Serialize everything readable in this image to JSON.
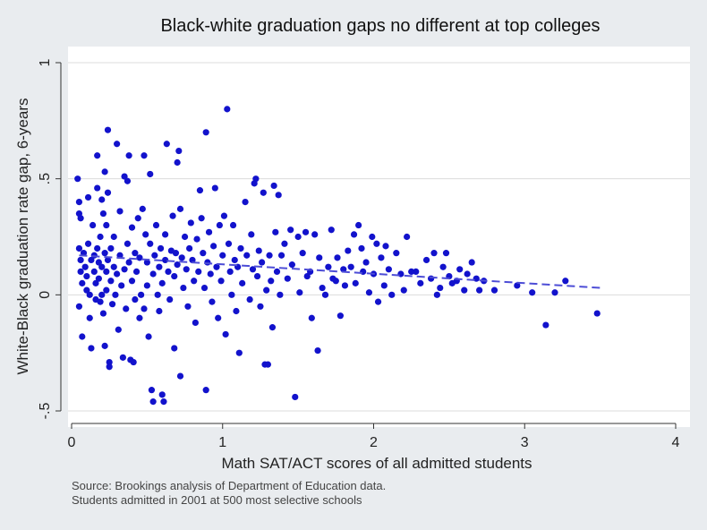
{
  "chart_data": {
    "type": "scatter",
    "title": "Black-white graduation gaps no different at top colleges",
    "xlabel": "Math SAT/ACT scores of all admitted students",
    "ylabel": "White-Black graduation rate gap, 6-years",
    "xlim": [
      0,
      4
    ],
    "ylim": [
      -0.5,
      1
    ],
    "xticks": [
      0,
      1,
      2,
      3,
      4
    ],
    "xtick_labels": [
      "0",
      "1",
      "2",
      "3",
      "4"
    ],
    "yticks": [
      -0.5,
      0,
      0.5,
      1
    ],
    "ytick_labels": [
      "-.5",
      "0",
      ".5",
      "1"
    ],
    "grid": true,
    "colors": {
      "points": "#1212cc",
      "fit": "#4d4dd6",
      "grid": "#dcdcdc",
      "background": "#e9ecef",
      "plot": "#ffffff"
    },
    "source_note": "Source: Brookings analysis of Department of Education data.",
    "sample_note": "Students admitted in 2001 at 500 most selective schools",
    "fit_line": {
      "style": "dashed",
      "x": [
        0.05,
        3.5
      ],
      "y": [
        0.17,
        0.03
      ]
    },
    "points": [
      [
        0.04,
        0.5
      ],
      [
        0.05,
        0.4
      ],
      [
        0.05,
        0.35
      ],
      [
        0.06,
        0.33
      ],
      [
        0.05,
        0.2
      ],
      [
        0.06,
        0.15
      ],
      [
        0.06,
        0.1
      ],
      [
        0.07,
        0.05
      ],
      [
        0.05,
        -0.05
      ],
      [
        0.07,
        -0.18
      ],
      [
        0.08,
        0.18
      ],
      [
        0.09,
        0.12
      ],
      [
        0.1,
        0.08
      ],
      [
        0.1,
        0.02
      ],
      [
        0.11,
        0.22
      ],
      [
        0.11,
        0.42
      ],
      [
        0.12,
        0.0
      ],
      [
        0.12,
        -0.1
      ],
      [
        0.13,
        0.15
      ],
      [
        0.13,
        -0.23
      ],
      [
        0.14,
        0.3
      ],
      [
        0.15,
        0.17
      ],
      [
        0.15,
        0.1
      ],
      [
        0.16,
        0.05
      ],
      [
        0.16,
        -0.02
      ],
      [
        0.17,
        0.2
      ],
      [
        0.17,
        0.6
      ],
      [
        0.17,
        0.46
      ],
      [
        0.18,
        0.14
      ],
      [
        0.18,
        0.07
      ],
      [
        0.19,
        0.25
      ],
      [
        0.19,
        -0.03
      ],
      [
        0.2,
        0.41
      ],
      [
        0.2,
        0.12
      ],
      [
        0.2,
        0.0
      ],
      [
        0.21,
        0.35
      ],
      [
        0.21,
        -0.08
      ],
      [
        0.22,
        0.18
      ],
      [
        0.22,
        0.53
      ],
      [
        0.22,
        -0.22
      ],
      [
        0.23,
        0.1
      ],
      [
        0.23,
        0.02
      ],
      [
        0.23,
        0.3
      ],
      [
        0.24,
        0.71
      ],
      [
        0.24,
        0.44
      ],
      [
        0.24,
        0.15
      ],
      [
        0.25,
        -0.29
      ],
      [
        0.25,
        -0.31
      ],
      [
        0.26,
        0.06
      ],
      [
        0.26,
        0.2
      ],
      [
        0.27,
        -0.04
      ],
      [
        0.28,
        0.12
      ],
      [
        0.28,
        0.25
      ],
      [
        0.29,
        0.0
      ],
      [
        0.3,
        0.65
      ],
      [
        0.3,
        0.09
      ],
      [
        0.31,
        -0.15
      ],
      [
        0.32,
        0.17
      ],
      [
        0.32,
        0.36
      ],
      [
        0.33,
        0.04
      ],
      [
        0.34,
        -0.27
      ],
      [
        0.35,
        0.51
      ],
      [
        0.35,
        0.11
      ],
      [
        0.36,
        -0.06
      ],
      [
        0.37,
        0.22
      ],
      [
        0.37,
        0.49
      ],
      [
        0.38,
        0.6
      ],
      [
        0.38,
        0.14
      ],
      [
        0.39,
        -0.28
      ],
      [
        0.4,
        0.29
      ],
      [
        0.4,
        0.06
      ],
      [
        0.41,
        -0.29
      ],
      [
        0.42,
        0.18
      ],
      [
        0.42,
        -0.02
      ],
      [
        0.43,
        0.1
      ],
      [
        0.44,
        0.33
      ],
      [
        0.45,
        -0.1
      ],
      [
        0.45,
        0.16
      ],
      [
        0.46,
        0.0
      ],
      [
        0.47,
        0.37
      ],
      [
        0.48,
        -0.06
      ],
      [
        0.48,
        0.6
      ],
      [
        0.49,
        0.26
      ],
      [
        0.5,
        0.14
      ],
      [
        0.5,
        0.04
      ],
      [
        0.51,
        -0.18
      ],
      [
        0.52,
        0.22
      ],
      [
        0.52,
        0.52
      ],
      [
        0.53,
        -0.41
      ],
      [
        0.54,
        0.09
      ],
      [
        0.54,
        -0.46
      ],
      [
        0.55,
        0.17
      ],
      [
        0.56,
        0.3
      ],
      [
        0.57,
        0.0
      ],
      [
        0.58,
        0.12
      ],
      [
        0.58,
        -0.07
      ],
      [
        0.59,
        0.2
      ],
      [
        0.6,
        0.05
      ],
      [
        0.6,
        -0.43
      ],
      [
        0.61,
        -0.46
      ],
      [
        0.62,
        0.15
      ],
      [
        0.62,
        0.26
      ],
      [
        0.63,
        0.65
      ],
      [
        0.64,
        0.1
      ],
      [
        0.65,
        -0.02
      ],
      [
        0.66,
        0.19
      ],
      [
        0.67,
        0.34
      ],
      [
        0.68,
        0.08
      ],
      [
        0.68,
        -0.23
      ],
      [
        0.69,
        0.18
      ],
      [
        0.7,
        0.57
      ],
      [
        0.7,
        0.13
      ],
      [
        0.71,
        0.62
      ],
      [
        0.72,
        -0.35
      ],
      [
        0.72,
        0.37
      ],
      [
        0.73,
        0.16
      ],
      [
        0.74,
        0.03
      ],
      [
        0.75,
        0.25
      ],
      [
        0.76,
        0.11
      ],
      [
        0.77,
        -0.05
      ],
      [
        0.78,
        0.2
      ],
      [
        0.79,
        0.31
      ],
      [
        0.8,
        0.15
      ],
      [
        0.81,
        0.06
      ],
      [
        0.82,
        -0.12
      ],
      [
        0.83,
        0.24
      ],
      [
        0.84,
        0.1
      ],
      [
        0.85,
        0.45
      ],
      [
        0.86,
        0.33
      ],
      [
        0.87,
        0.18
      ],
      [
        0.88,
        0.03
      ],
      [
        0.89,
        0.7
      ],
      [
        0.89,
        -0.41
      ],
      [
        0.9,
        0.14
      ],
      [
        0.91,
        0.27
      ],
      [
        0.92,
        0.09
      ],
      [
        0.93,
        -0.03
      ],
      [
        0.94,
        0.21
      ],
      [
        0.95,
        0.46
      ],
      [
        0.96,
        0.12
      ],
      [
        0.97,
        -0.1
      ],
      [
        0.98,
        0.3
      ],
      [
        0.99,
        0.06
      ],
      [
        1.0,
        0.17
      ],
      [
        1.01,
        0.34
      ],
      [
        1.02,
        -0.17
      ],
      [
        1.03,
        0.8
      ],
      [
        1.04,
        0.22
      ],
      [
        1.05,
        0.1
      ],
      [
        1.06,
        0.0
      ],
      [
        1.07,
        0.3
      ],
      [
        1.08,
        0.15
      ],
      [
        1.09,
        -0.07
      ],
      [
        1.1,
        0.12
      ],
      [
        1.11,
        -0.25
      ],
      [
        1.12,
        0.2
      ],
      [
        1.13,
        0.05
      ],
      [
        1.15,
        0.4
      ],
      [
        1.16,
        0.17
      ],
      [
        1.18,
        -0.02
      ],
      [
        1.19,
        0.26
      ],
      [
        1.2,
        0.11
      ],
      [
        1.21,
        0.48
      ],
      [
        1.22,
        0.5
      ],
      [
        1.23,
        0.08
      ],
      [
        1.24,
        0.19
      ],
      [
        1.25,
        -0.05
      ],
      [
        1.26,
        0.14
      ],
      [
        1.27,
        0.44
      ],
      [
        1.28,
        -0.3
      ],
      [
        1.29,
        0.02
      ],
      [
        1.3,
        -0.3
      ],
      [
        1.31,
        0.17
      ],
      [
        1.32,
        0.06
      ],
      [
        1.33,
        -0.14
      ],
      [
        1.34,
        0.47
      ],
      [
        1.35,
        0.27
      ],
      [
        1.36,
        0.1
      ],
      [
        1.37,
        0.43
      ],
      [
        1.38,
        0.0
      ],
      [
        1.39,
        0.17
      ],
      [
        1.41,
        0.22
      ],
      [
        1.43,
        0.07
      ],
      [
        1.45,
        0.28
      ],
      [
        1.46,
        0.13
      ],
      [
        1.48,
        -0.44
      ],
      [
        1.5,
        0.25
      ],
      [
        1.51,
        0.01
      ],
      [
        1.53,
        0.18
      ],
      [
        1.55,
        0.27
      ],
      [
        1.56,
        0.08
      ],
      [
        1.58,
        0.1
      ],
      [
        1.59,
        -0.1
      ],
      [
        1.61,
        0.26
      ],
      [
        1.63,
        -0.24
      ],
      [
        1.64,
        0.16
      ],
      [
        1.66,
        0.03
      ],
      [
        1.68,
        0.0
      ],
      [
        1.7,
        0.12
      ],
      [
        1.72,
        0.28
      ],
      [
        1.73,
        0.07
      ],
      [
        1.75,
        0.06
      ],
      [
        1.76,
        0.16
      ],
      [
        1.78,
        -0.09
      ],
      [
        1.8,
        0.11
      ],
      [
        1.81,
        0.04
      ],
      [
        1.83,
        0.19
      ],
      [
        1.85,
        0.12
      ],
      [
        1.87,
        0.26
      ],
      [
        1.88,
        0.05
      ],
      [
        1.9,
        0.3
      ],
      [
        1.92,
        0.2
      ],
      [
        1.93,
        0.1
      ],
      [
        1.95,
        0.14
      ],
      [
        1.97,
        0.01
      ],
      [
        1.99,
        0.25
      ],
      [
        2.0,
        0.09
      ],
      [
        2.02,
        0.22
      ],
      [
        2.03,
        -0.03
      ],
      [
        2.05,
        0.16
      ],
      [
        2.07,
        0.04
      ],
      [
        2.08,
        0.21
      ],
      [
        2.1,
        0.11
      ],
      [
        2.12,
        0.0
      ],
      [
        2.15,
        0.18
      ],
      [
        2.18,
        0.09
      ],
      [
        2.2,
        0.02
      ],
      [
        2.22,
        0.25
      ],
      [
        2.25,
        0.1
      ],
      [
        2.28,
        0.1
      ],
      [
        2.31,
        0.05
      ],
      [
        2.35,
        0.15
      ],
      [
        2.38,
        0.07
      ],
      [
        2.4,
        0.18
      ],
      [
        2.42,
        0.0
      ],
      [
        2.44,
        0.03
      ],
      [
        2.46,
        0.12
      ],
      [
        2.48,
        0.18
      ],
      [
        2.5,
        0.08
      ],
      [
        2.52,
        0.05
      ],
      [
        2.55,
        0.06
      ],
      [
        2.57,
        0.11
      ],
      [
        2.6,
        0.02
      ],
      [
        2.62,
        0.09
      ],
      [
        2.65,
        0.14
      ],
      [
        2.68,
        0.07
      ],
      [
        2.7,
        0.02
      ],
      [
        2.73,
        0.06
      ],
      [
        2.8,
        0.02
      ],
      [
        2.95,
        0.04
      ],
      [
        3.05,
        0.01
      ],
      [
        3.14,
        -0.13
      ],
      [
        3.2,
        0.01
      ],
      [
        3.27,
        0.06
      ],
      [
        3.48,
        -0.08
      ]
    ]
  }
}
